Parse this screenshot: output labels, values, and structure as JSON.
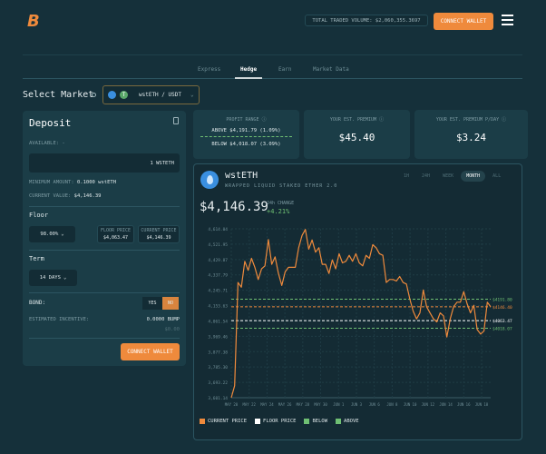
{
  "header": {
    "logo": "B",
    "total_volume": "TOTAL TRADED VOLUME: $2,060,355.3697",
    "connect_wallet": "CONNECT WALLET"
  },
  "tabs": [
    {
      "label": "Express"
    },
    {
      "label": "Hedge",
      "active": true
    },
    {
      "label": "Earn"
    },
    {
      "label": "Market Data"
    }
  ],
  "market": {
    "label": "Select Market",
    "pair": "wstETH / USDT"
  },
  "deposit": {
    "title": "Deposit",
    "available": "AVAILABLE: -",
    "amount": "1 WSTETH",
    "min_label": "MINIMUM AMOUNT:",
    "min_value": "0.1000 wstETH",
    "cur_label": "CURRENT VALUE:",
    "cur_value": "$4,146.39",
    "floor_title": "Floor",
    "floor_value": "98.00%",
    "floor_price_label": "FLOOR PRICE",
    "floor_price": "$4,063.47",
    "current_price_label": "CURRENT PRICE",
    "current_price": "$4,146.39",
    "term_title": "Term",
    "term_value": "14 DAYS",
    "bond_label": "BOND:",
    "yes": "YES",
    "no": "NO",
    "bond_selected": "NO",
    "incentive_label": "ESTIMATED INCENTIVE:",
    "incentive_value": "0.0000 BUMP",
    "incentive_usd": "$0.00",
    "connect_wallet": "CONNECT WALLET"
  },
  "stats": {
    "profit_label": "PROFIT RANGE",
    "above": "ABOVE $4,191.79 (1.09%)",
    "below": "BELOW $4,018.07 (3.09%)",
    "premium_label": "YOUR EST. PREMIUM",
    "premium": "$45.40",
    "per_day_label": "YOUR EST. PREMIUM P/DAY",
    "per_day": "$3.24"
  },
  "asset": {
    "symbol": "wstETH",
    "name": "WRAPPED LIQUID STAKED ETHER 2.0",
    "price": "$4,146.39",
    "change_label": "24h CHANGE",
    "change": "+4.21%",
    "ranges": [
      "1H",
      "24H",
      "WEEK",
      "MONTH",
      "ALL"
    ],
    "active_range": "MONTH"
  },
  "colors": {
    "accent": "#ef8a3c",
    "green": "#6fbf73",
    "bg": "#15303a",
    "panel": "#1b3d47"
  },
  "chart_data": {
    "type": "line",
    "ylim": [
      3601.14,
      4614.04
    ],
    "yticks": [
      "4,614.04",
      "4,521.95",
      "4,429.87",
      "4,337.79",
      "4,245.71",
      "4,153.63",
      "4,061.54",
      "3,969.46",
      "3,877.38",
      "3,785.30",
      "3,693.22",
      "3,601.14"
    ],
    "xticks": [
      "MAY 20",
      "MAY 22",
      "MAY 24",
      "MAY 26",
      "MAY 28",
      "MAY 30",
      "JUN 1",
      "JUN 3",
      "JUN 6",
      "JUN 8",
      "JUN 10",
      "JUN 12",
      "JUN 14",
      "JUN 16",
      "JUN 18"
    ],
    "series": [
      {
        "name": "CURRENT PRICE",
        "values": [
          3601,
          3673,
          4292,
          4264,
          4419,
          4365,
          4437,
          4383,
          4310,
          4374,
          4392,
          4550,
          4401,
          4446,
          4346,
          4274,
          4356,
          4383,
          4383,
          4383,
          4501,
          4574,
          4610,
          4492,
          4547,
          4474,
          4501,
          4401,
          4401,
          4346,
          4428,
          4374,
          4465,
          4410,
          4419,
          4455,
          4419,
          4465,
          4410,
          4392,
          4455,
          4437,
          4519,
          4501,
          4465,
          4455,
          4292,
          4310,
          4310,
          4301,
          4328,
          4292,
          4283,
          4192,
          4119,
          4074,
          4110,
          4247,
          4146,
          4110,
          4074,
          4056,
          4110,
          4092,
          3965,
          4074,
          4146,
          4174,
          4174,
          4237,
          4165,
          4110,
          4155,
          4010,
          3983,
          4001,
          4174,
          4146
        ]
      }
    ],
    "levels": [
      {
        "name": "ABOVE",
        "value": 4191.8,
        "label": "$4191.80",
        "color": "#6fbf73"
      },
      {
        "name": "CURRENT PRICE",
        "value": 4146.4,
        "label": "$4146.40",
        "color": "#ef8a3c"
      },
      {
        "name": "FLOOR PRICE",
        "value": 4063.47,
        "label": "$4063.47",
        "color": "#ffffff"
      },
      {
        "name": "BELOW",
        "value": 4018.07,
        "label": "$4018.07",
        "color": "#6fbf73"
      }
    ],
    "legend": [
      {
        "label": "CURRENT PRICE",
        "color": "#ef8a3c"
      },
      {
        "label": "FLOOR PRICE",
        "color": "#ffffff"
      },
      {
        "label": "BELOW",
        "color": "#6fbf73"
      },
      {
        "label": "ABOVE",
        "color": "#6fbf73"
      }
    ],
    "legend_position": "bottom-left",
    "grid": true
  }
}
